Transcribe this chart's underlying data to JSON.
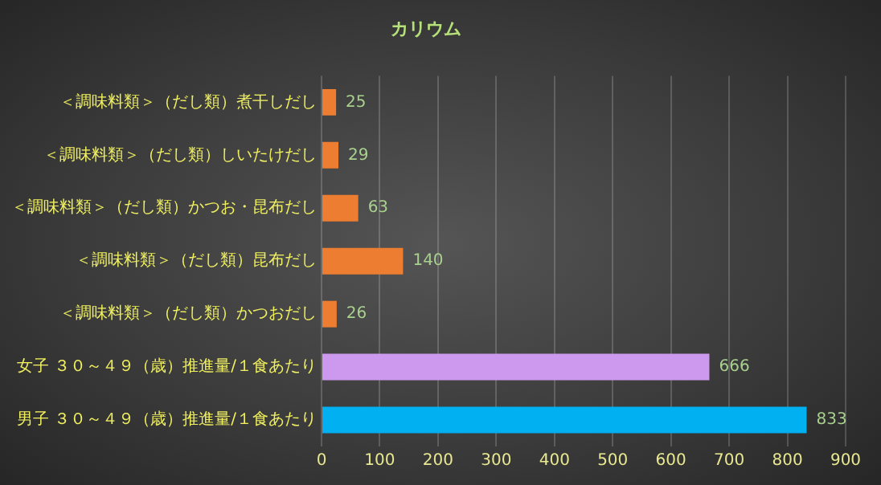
{
  "chart_data": {
    "type": "bar",
    "orientation": "horizontal",
    "title": "カリウム",
    "categories": [
      "＜調味料類＞（だし類）煮干しだし",
      "＜調味料類＞（だし類）しいたけだし",
      "＜調味料類＞（だし類）かつお・昆布だし",
      "＜調味料類＞（だし類）昆布だし",
      "＜調味料類＞（だし類）かつおだし",
      "女子 ３０～４９（歳）推進量/１食あたり",
      "男子 ３０～４９（歳）推進量/１食あたり"
    ],
    "values": [
      25,
      29,
      63,
      140,
      26,
      666,
      833
    ],
    "colors": [
      "#ed7d31",
      "#ed7d31",
      "#ed7d31",
      "#ed7d31",
      "#ed7d31",
      "#cc99ee",
      "#00b0f0"
    ],
    "xlim": [
      0,
      900
    ],
    "xticks": [
      0,
      100,
      200,
      300,
      400,
      500,
      600,
      700,
      800,
      900
    ],
    "grid": "x",
    "data_labels": true,
    "legend": false
  }
}
